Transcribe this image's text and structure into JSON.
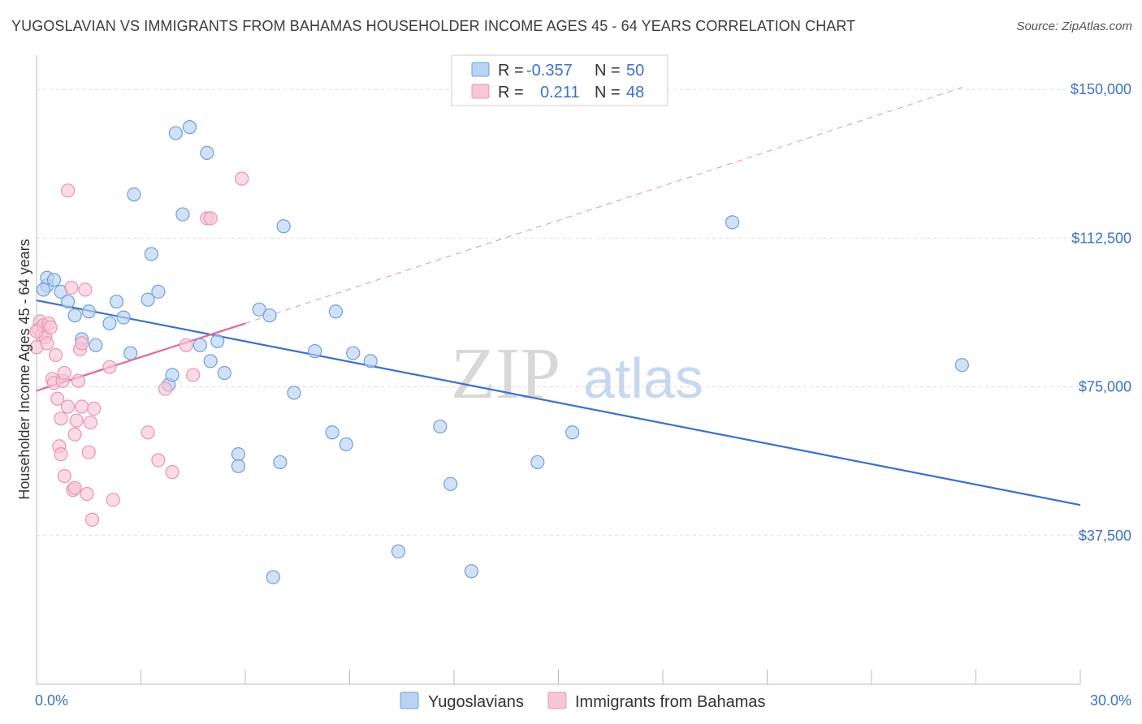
{
  "title": "YUGOSLAVIAN VS IMMIGRANTS FROM BAHAMAS HOUSEHOLDER INCOME AGES 45 - 64 YEARS CORRELATION CHART",
  "source": "Source: ZipAtlas.com",
  "watermark": {
    "zip": "ZIP",
    "atlas": "atlas"
  },
  "colors": {
    "blue": "#3a72c6",
    "blue_fill": "#b9d3f2",
    "blue_stroke": "#6f9fd8",
    "pink": "#e2678f",
    "pink_fill": "#f7c6d5",
    "pink_stroke": "#ea94b1",
    "grid": "#dddddd"
  },
  "legend_box": {
    "rows": [
      {
        "r_label": "R =",
        "r_value": "-0.357",
        "n_label": "N =",
        "n_value": "50"
      },
      {
        "r_label": "R =",
        "r_value": "0.211",
        "n_label": "N =",
        "n_value": "48"
      }
    ]
  },
  "chart_data": {
    "type": "scatter",
    "title": "YUGOSLAVIAN VS IMMIGRANTS FROM BAHAMAS HOUSEHOLDER INCOME AGES 45 - 64 YEARS CORRELATION CHART",
    "xlabel": "",
    "ylabel": "Householder Income Ages 45 - 64 years",
    "xlim": [
      0,
      30
    ],
    "ylim": [
      0,
      157000
    ],
    "x_tick_labels": [
      "0.0%",
      "30.0%"
    ],
    "y_ticks": [
      37500,
      75000,
      112500,
      150000
    ],
    "y_tick_labels": [
      "$37,500",
      "$75,000",
      "$112,500",
      "$150,000"
    ],
    "grid": true,
    "legend_position": "bottom-center",
    "series": [
      {
        "name": "Yugoslavians",
        "color": "blue",
        "R": -0.357,
        "N": 50,
        "trend": {
          "x": [
            0,
            30
          ],
          "y": [
            96800,
            45200
          ]
        },
        "points": [
          [
            0.3,
            100500
          ],
          [
            0.3,
            102500
          ],
          [
            0.5,
            102000
          ],
          [
            0.7,
            99000
          ],
          [
            0.9,
            96500
          ],
          [
            1.1,
            93000
          ],
          [
            1.3,
            87000
          ],
          [
            1.5,
            94000
          ],
          [
            1.7,
            85500
          ],
          [
            2.1,
            91000
          ],
          [
            2.3,
            96500
          ],
          [
            2.5,
            92500
          ],
          [
            2.7,
            83500
          ],
          [
            2.8,
            123500
          ],
          [
            3.2,
            97000
          ],
          [
            3.3,
            108500
          ],
          [
            3.5,
            99000
          ],
          [
            3.8,
            75500
          ],
          [
            3.9,
            78000
          ],
          [
            4.0,
            139000
          ],
          [
            4.2,
            118500
          ],
          [
            4.4,
            140500
          ],
          [
            4.7,
            85500
          ],
          [
            4.9,
            134000
          ],
          [
            5.0,
            81500
          ],
          [
            5.2,
            86500
          ],
          [
            5.4,
            78500
          ],
          [
            5.8,
            58000
          ],
          [
            5.8,
            55000
          ],
          [
            6.4,
            94500
          ],
          [
            6.7,
            93000
          ],
          [
            6.8,
            27000
          ],
          [
            7.0,
            56000
          ],
          [
            7.1,
            115500
          ],
          [
            7.4,
            73500
          ],
          [
            8.0,
            84000
          ],
          [
            8.5,
            63500
          ],
          [
            8.6,
            94000
          ],
          [
            8.9,
            60500
          ],
          [
            9.1,
            83500
          ],
          [
            9.6,
            81500
          ],
          [
            10.4,
            33500
          ],
          [
            11.6,
            65000
          ],
          [
            11.9,
            50500
          ],
          [
            12.5,
            28500
          ],
          [
            14.4,
            56000
          ],
          [
            15.4,
            63500
          ],
          [
            20.0,
            116500
          ],
          [
            26.6,
            80500
          ],
          [
            0.2,
            99500
          ]
        ]
      },
      {
        "name": "Immigrants from Bahamas",
        "color": "pink",
        "R": 0.211,
        "N": 48,
        "trend": {
          "x": [
            0,
            6
          ],
          "y": [
            74000,
            91000
          ]
        },
        "trend_ext": {
          "x": [
            6,
            26.6
          ],
          "y": [
            91000,
            150500
          ]
        },
        "points": [
          [
            0.0,
            85000
          ],
          [
            0.05,
            89500
          ],
          [
            0.1,
            91500
          ],
          [
            0.15,
            88000
          ],
          [
            0.2,
            90500
          ],
          [
            0.25,
            87500
          ],
          [
            0.3,
            86000
          ],
          [
            0.35,
            91000
          ],
          [
            0.4,
            90000
          ],
          [
            0.45,
            77000
          ],
          [
            0.5,
            76000
          ],
          [
            0.55,
            83000
          ],
          [
            0.6,
            72000
          ],
          [
            0.65,
            60000
          ],
          [
            0.7,
            67000
          ],
          [
            0.7,
            58000
          ],
          [
            0.75,
            76500
          ],
          [
            0.8,
            78500
          ],
          [
            0.8,
            52500
          ],
          [
            0.9,
            70000
          ],
          [
            0.9,
            124500
          ],
          [
            1.0,
            100000
          ],
          [
            1.05,
            49000
          ],
          [
            1.1,
            63000
          ],
          [
            1.1,
            49500
          ],
          [
            1.15,
            66500
          ],
          [
            1.2,
            76500
          ],
          [
            1.25,
            84500
          ],
          [
            1.3,
            86000
          ],
          [
            1.3,
            70000
          ],
          [
            1.4,
            99500
          ],
          [
            1.45,
            48000
          ],
          [
            1.5,
            58500
          ],
          [
            1.55,
            66000
          ],
          [
            1.6,
            41500
          ],
          [
            1.65,
            69500
          ],
          [
            2.1,
            80000
          ],
          [
            2.2,
            46500
          ],
          [
            3.2,
            63500
          ],
          [
            3.5,
            56500
          ],
          [
            3.7,
            74500
          ],
          [
            3.9,
            53500
          ],
          [
            4.3,
            85500
          ],
          [
            4.5,
            78000
          ],
          [
            4.9,
            117500
          ],
          [
            5.0,
            117500
          ],
          [
            5.9,
            127500
          ],
          [
            0.0,
            89000
          ]
        ]
      }
    ]
  }
}
